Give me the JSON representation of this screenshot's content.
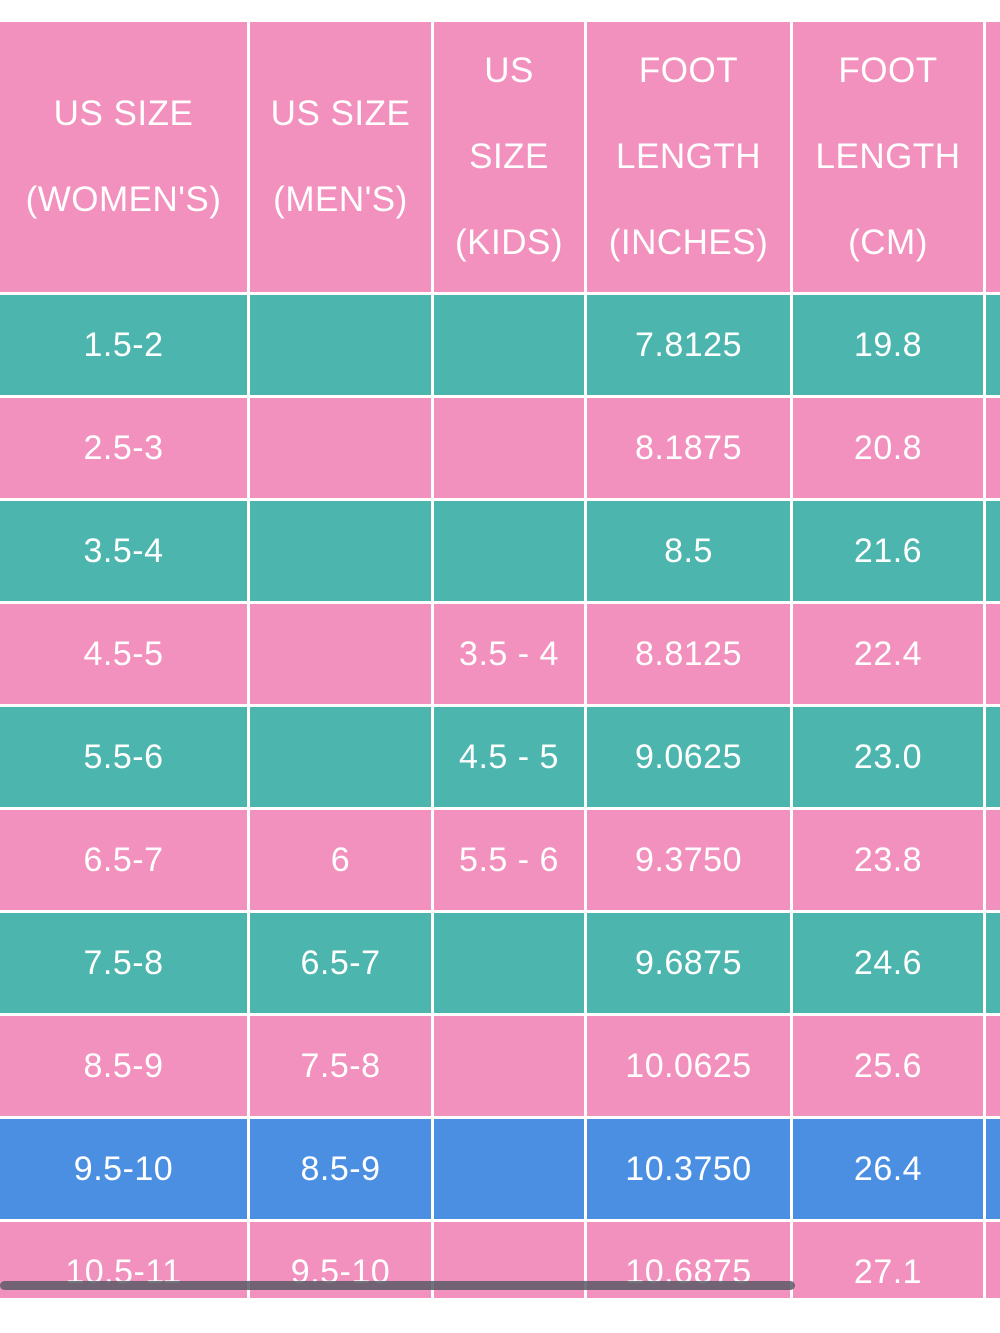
{
  "colors": {
    "header": "#f291bd",
    "pink_row": "#f291bd",
    "teal_row": "#4bb5ae",
    "blue_row": "#4b8fe3",
    "text": "#ffffff"
  },
  "headers": [
    "US SIZE\n(WOMEN'S)",
    "US SIZE\n(MEN'S)",
    "US\nSIZE\n(KIDS)",
    "FOOT\nLENGTH\n(INCHES)",
    "FOOT\nLENGTH\n(CM)",
    ""
  ],
  "rows": [
    {
      "color": "teal",
      "cells": [
        "1.5-2",
        "",
        "",
        "7.8125",
        "19.8",
        ""
      ]
    },
    {
      "color": "pink",
      "cells": [
        "2.5-3",
        "",
        "",
        "8.1875",
        "20.8",
        ""
      ]
    },
    {
      "color": "teal",
      "cells": [
        "3.5-4",
        "",
        "",
        "8.5",
        "21.6",
        ""
      ]
    },
    {
      "color": "pink",
      "cells": [
        "4.5-5",
        "",
        "3.5 - 4",
        "8.8125",
        "22.4",
        ""
      ]
    },
    {
      "color": "teal",
      "cells": [
        "5.5-6",
        "",
        "4.5 - 5",
        "9.0625",
        "23.0",
        ""
      ]
    },
    {
      "color": "pink",
      "cells": [
        "6.5-7",
        "6",
        "5.5 - 6",
        "9.3750",
        "23.8",
        ""
      ]
    },
    {
      "color": "teal",
      "cells": [
        "7.5-8",
        "6.5-7",
        "",
        "9.6875",
        "24.6",
        ""
      ]
    },
    {
      "color": "pink",
      "cells": [
        "8.5-9",
        "7.5-8",
        "",
        "10.0625",
        "25.6",
        ""
      ]
    },
    {
      "color": "blue",
      "cells": [
        "9.5-10",
        "8.5-9",
        "",
        "10.3750",
        "26.4",
        ""
      ]
    },
    {
      "color": "pink",
      "cells": [
        "10.5-11",
        "9.5-10",
        "",
        "10.6875",
        "27.1",
        ""
      ]
    }
  ]
}
